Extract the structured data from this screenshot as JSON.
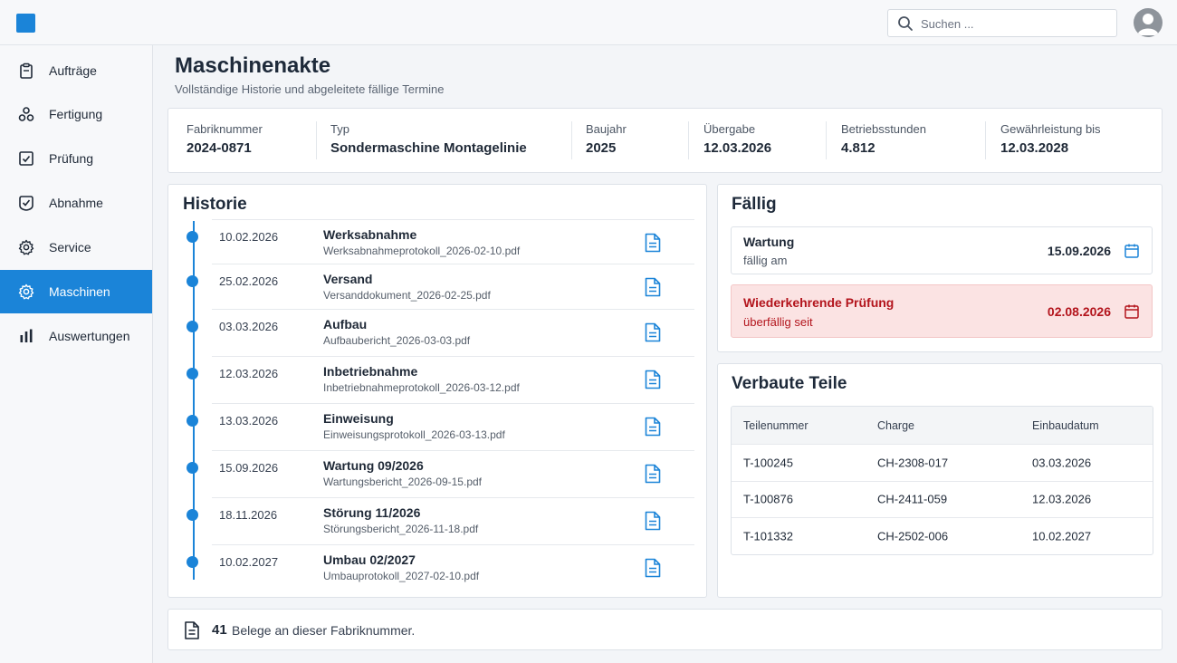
{
  "search": {
    "placeholder": "Suchen ..."
  },
  "sidebar": {
    "items": [
      {
        "label": "Aufträge",
        "icon": "clipboard-icon",
        "active": false
      },
      {
        "label": "Fertigung",
        "icon": "assembly-icon",
        "active": false
      },
      {
        "label": "Prüfung",
        "icon": "check-square-icon",
        "active": false
      },
      {
        "label": "Abnahme",
        "icon": "check-badge-icon",
        "active": false
      },
      {
        "label": "Service",
        "icon": "gear-icon",
        "active": false
      },
      {
        "label": "Maschinen",
        "icon": "gear-icon",
        "active": true
      },
      {
        "label": "Auswertungen",
        "icon": "bar-chart-icon",
        "active": false
      }
    ]
  },
  "page": {
    "title": "Maschinenakte",
    "subtitle": "Vollständige Historie und abgeleitete fällige Termine"
  },
  "meta": [
    {
      "label": "Fabriknummer",
      "value": "2024-0871"
    },
    {
      "label": "Typ",
      "value": "Sondermaschine Montagelinie"
    },
    {
      "label": "Baujahr",
      "value": "2025"
    },
    {
      "label": "Übergabe",
      "value": "12.03.2026"
    },
    {
      "label": "Betriebsstunden",
      "value": "4.812"
    },
    {
      "label": "Gewährleistung bis",
      "value": "12.03.2028"
    }
  ],
  "history": {
    "title": "Historie",
    "entries": [
      {
        "date": "10.02.2026",
        "title": "Werksabnahme",
        "file": "Werksabnahmeprotokoll_2026-02-10.pdf"
      },
      {
        "date": "25.02.2026",
        "title": "Versand",
        "file": "Versanddokument_2026-02-25.pdf"
      },
      {
        "date": "03.03.2026",
        "title": "Aufbau",
        "file": "Aufbaubericht_2026-03-03.pdf"
      },
      {
        "date": "12.03.2026",
        "title": "Inbetriebnahme",
        "file": "Inbetriebnahmeprotokoll_2026-03-12.pdf"
      },
      {
        "date": "13.03.2026",
        "title": "Einweisung",
        "file": "Einweisungsprotokoll_2026-03-13.pdf"
      },
      {
        "date": "15.09.2026",
        "title": "Wartung 09/2026",
        "file": "Wartungsbericht_2026-09-15.pdf"
      },
      {
        "date": "18.11.2026",
        "title": "Störung 11/2026",
        "file": "Störungsbericht_2026-11-18.pdf"
      },
      {
        "date": "10.02.2027",
        "title": "Umbau 02/2027",
        "file": "Umbauprotokoll_2027-02-10.pdf"
      }
    ]
  },
  "due": {
    "title": "Fällig",
    "items": [
      {
        "title": "Wartung",
        "subtitle": "fällig am",
        "date": "15.09.2026",
        "overdue": false
      },
      {
        "title": "Wiederkehrende Prüfung",
        "subtitle": "überfällig seit",
        "date": "02.08.2026",
        "overdue": true
      }
    ]
  },
  "parts": {
    "title": "Verbaute Teile",
    "columns": [
      "Teilenummer",
      "Charge",
      "Einbaudatum"
    ],
    "rows": [
      [
        "T-100245",
        "CH-2308-017",
        "03.03.2026"
      ],
      [
        "T-100876",
        "CH-2411-059",
        "12.03.2026"
      ],
      [
        "T-101332",
        "CH-2502-006",
        "10.02.2027"
      ]
    ]
  },
  "footer": {
    "count": "41",
    "text": "Belege an dieser Fabriknummer."
  },
  "colors": {
    "accent": "#1b84d8",
    "overdue_text": "#b3141c",
    "overdue_bg": "#fbe3e3"
  }
}
